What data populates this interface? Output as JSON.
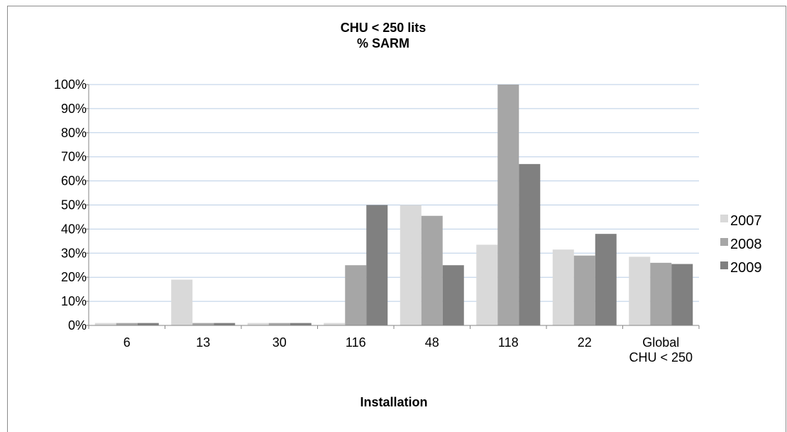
{
  "chart_data": {
    "type": "bar",
    "title": [
      "CHU < 250 lits",
      "% SARM"
    ],
    "xlabel": "Installation",
    "ylabel": "",
    "ylim": [
      0,
      1
    ],
    "yticks": [
      "0%",
      "10%",
      "20%",
      "30%",
      "40%",
      "50%",
      "60%",
      "70%",
      "80%",
      "90%",
      "100%"
    ],
    "categories": [
      [
        "6"
      ],
      [
        "13"
      ],
      [
        "30"
      ],
      [
        "116"
      ],
      [
        "48"
      ],
      [
        "118"
      ],
      [
        "22"
      ],
      [
        "Global",
        "CHU < 250"
      ]
    ],
    "series": [
      {
        "name": "2007",
        "color": "#d9d9d9",
        "values": [
          0.01,
          0.19,
          0.01,
          0.01,
          0.5,
          0.335,
          0.315,
          0.285
        ]
      },
      {
        "name": "2008",
        "color": "#a6a6a6",
        "values": [
          0.01,
          0.01,
          0.01,
          0.25,
          0.455,
          1.0,
          0.29,
          0.26
        ]
      },
      {
        "name": "2009",
        "color": "#808080",
        "values": [
          0.01,
          0.01,
          0.01,
          0.5,
          0.25,
          0.67,
          0.38,
          0.255
        ]
      }
    ],
    "grid": true,
    "gridColor": "#b9cde5",
    "legend": "right"
  }
}
